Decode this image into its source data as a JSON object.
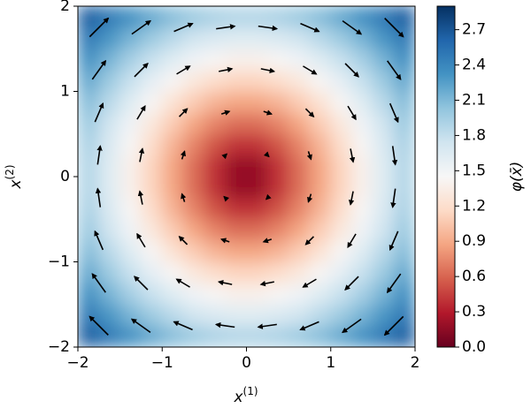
{
  "chart_data": {
    "type": "contour-quiver",
    "xlabel": {
      "base": "x",
      "sup": "(1)"
    },
    "ylabel": {
      "base": "x",
      "sup": "(2)"
    },
    "colorbar_label": "φ(x̄)",
    "xlim": [
      -2,
      2
    ],
    "ylim": [
      -2,
      2
    ],
    "zlim": [
      0,
      2.9
    ],
    "xticks": [
      {
        "value": -2,
        "label": "−2"
      },
      {
        "value": -1,
        "label": "−1"
      },
      0,
      1,
      2
    ],
    "yticks": [
      {
        "value": -2,
        "label": "−2"
      },
      {
        "value": -1,
        "label": "−1"
      },
      0,
      1,
      2
    ],
    "cticks": [
      {
        "value": 0,
        "label": "0.0"
      },
      {
        "value": 0.3,
        "label": "0.3"
      },
      {
        "value": 0.6,
        "label": "0.6"
      },
      {
        "value": 0.9,
        "label": "0.9"
      },
      {
        "value": 1.2,
        "label": "1.2"
      },
      {
        "value": 1.5,
        "label": "1.5"
      },
      {
        "value": 1.8,
        "label": "1.8"
      },
      {
        "value": 2.1,
        "label": "2.1"
      },
      {
        "value": 2.4,
        "label": "2.4"
      },
      {
        "value": 2.7,
        "label": "2.7"
      }
    ],
    "colormap": [
      "#67001f",
      "#b2182b",
      "#d6604d",
      "#f4a582",
      "#fddbc7",
      "#f7f7f7",
      "#d1e5f0",
      "#92c5de",
      "#4393c3",
      "#2166ac",
      "#053061"
    ],
    "arrow_color": "#000000",
    "x": [
      -1.875,
      -1.625,
      -1.375,
      -1.125,
      -0.875,
      -0.625,
      -0.375,
      -0.125,
      0.125,
      0.375,
      0.625,
      0.875,
      1.125,
      1.375,
      1.625,
      1.875
    ],
    "y": [
      -1.875,
      -1.625,
      -1.375,
      -1.125,
      -0.875,
      -0.625,
      -0.375,
      -0.125,
      0.125,
      0.375,
      0.625,
      0.875,
      1.125,
      1.375,
      1.625,
      1.875
    ],
    "z": [
      [
        2.65,
        2.48,
        2.33,
        2.19,
        2.07,
        1.98,
        1.91,
        1.88,
        1.88,
        1.91,
        1.98,
        2.07,
        2.19,
        2.33,
        2.48,
        2.65
      ],
      [
        2.48,
        2.3,
        2.13,
        1.98,
        1.85,
        1.74,
        1.67,
        1.63,
        1.63,
        1.67,
        1.74,
        1.85,
        1.98,
        2.13,
        2.3,
        2.48
      ],
      [
        2.33,
        2.13,
        1.94,
        1.78,
        1.63,
        1.51,
        1.43,
        1.38,
        1.38,
        1.43,
        1.51,
        1.63,
        1.78,
        1.94,
        2.13,
        2.33
      ],
      [
        2.19,
        1.98,
        1.78,
        1.59,
        1.43,
        1.29,
        1.19,
        1.13,
        1.13,
        1.19,
        1.29,
        1.43,
        1.59,
        1.78,
        1.98,
        2.19
      ],
      [
        2.07,
        1.85,
        1.63,
        1.43,
        1.24,
        1.08,
        0.95,
        0.88,
        0.88,
        0.95,
        1.08,
        1.24,
        1.43,
        1.63,
        1.85,
        2.07
      ],
      [
        1.98,
        1.74,
        1.51,
        1.29,
        1.08,
        0.88,
        0.73,
        0.64,
        0.64,
        0.73,
        0.88,
        1.08,
        1.29,
        1.51,
        1.74,
        1.98
      ],
      [
        1.91,
        1.67,
        1.43,
        1.19,
        0.95,
        0.73,
        0.53,
        0.4,
        0.4,
        0.53,
        0.73,
        0.95,
        1.19,
        1.43,
        1.67,
        1.91
      ],
      [
        1.88,
        1.63,
        1.38,
        1.13,
        0.88,
        0.64,
        0.4,
        0.18,
        0.18,
        0.4,
        0.64,
        0.88,
        1.13,
        1.38,
        1.63,
        1.88
      ],
      [
        1.88,
        1.63,
        1.38,
        1.13,
        0.88,
        0.64,
        0.4,
        0.18,
        0.18,
        0.4,
        0.64,
        0.88,
        1.13,
        1.38,
        1.63,
        1.88
      ],
      [
        1.91,
        1.67,
        1.43,
        1.19,
        0.95,
        0.73,
        0.53,
        0.4,
        0.4,
        0.53,
        0.73,
        0.95,
        1.19,
        1.43,
        1.67,
        1.91
      ],
      [
        1.98,
        1.74,
        1.51,
        1.29,
        1.08,
        0.88,
        0.73,
        0.64,
        0.64,
        0.73,
        0.88,
        1.08,
        1.29,
        1.51,
        1.74,
        1.98
      ],
      [
        2.07,
        1.85,
        1.63,
        1.43,
        1.24,
        1.08,
        0.95,
        0.88,
        0.88,
        0.95,
        1.08,
        1.24,
        1.43,
        1.63,
        1.85,
        2.07
      ],
      [
        2.19,
        1.98,
        1.78,
        1.59,
        1.43,
        1.29,
        1.19,
        1.13,
        1.13,
        1.19,
        1.29,
        1.43,
        1.59,
        1.78,
        1.98,
        2.19
      ],
      [
        2.33,
        2.13,
        1.94,
        1.78,
        1.63,
        1.51,
        1.43,
        1.38,
        1.38,
        1.43,
        1.51,
        1.63,
        1.78,
        1.94,
        2.13,
        2.33
      ],
      [
        2.48,
        2.3,
        2.13,
        1.98,
        1.85,
        1.74,
        1.67,
        1.63,
        1.63,
        1.67,
        1.74,
        1.85,
        1.98,
        2.13,
        2.3,
        2.48
      ],
      [
        2.65,
        2.48,
        2.33,
        2.19,
        2.07,
        1.98,
        1.91,
        1.88,
        1.88,
        1.91,
        1.98,
        2.07,
        2.19,
        2.33,
        2.48,
        2.65
      ]
    ],
    "quiver": {
      "x": [
        -1.75,
        -1.25,
        -0.75,
        -0.25,
        0.25,
        0.75,
        1.25,
        1.75
      ],
      "y": [
        -1.75,
        -1.25,
        -0.75,
        -0.25,
        0.25,
        0.75,
        1.25,
        1.75
      ],
      "u": [
        [
          -1.75,
          -1.75,
          -1.75,
          -1.75,
          -1.75,
          -1.75,
          -1.75,
          -1.75
        ],
        [
          -1.25,
          -1.25,
          -1.25,
          -1.25,
          -1.25,
          -1.25,
          -1.25,
          -1.25
        ],
        [
          -0.75,
          -0.75,
          -0.75,
          -0.75,
          -0.75,
          -0.75,
          -0.75,
          -0.75
        ],
        [
          -0.25,
          -0.25,
          -0.25,
          -0.25,
          -0.25,
          -0.25,
          -0.25,
          -0.25
        ],
        [
          0.25,
          0.25,
          0.25,
          0.25,
          0.25,
          0.25,
          0.25,
          0.25
        ],
        [
          0.75,
          0.75,
          0.75,
          0.75,
          0.75,
          0.75,
          0.75,
          0.75
        ],
        [
          1.25,
          1.25,
          1.25,
          1.25,
          1.25,
          1.25,
          1.25,
          1.25
        ],
        [
          1.75,
          1.75,
          1.75,
          1.75,
          1.75,
          1.75,
          1.75,
          1.75
        ]
      ],
      "v": [
        [
          1.75,
          1.25,
          0.75,
          0.25,
          -0.25,
          -0.75,
          -1.25,
          -1.75
        ],
        [
          1.75,
          1.25,
          0.75,
          0.25,
          -0.25,
          -0.75,
          -1.25,
          -1.75
        ],
        [
          1.75,
          1.25,
          0.75,
          0.25,
          -0.25,
          -0.75,
          -1.25,
          -1.75
        ],
        [
          1.75,
          1.25,
          0.75,
          0.25,
          -0.25,
          -0.75,
          -1.25,
          -1.75
        ],
        [
          1.75,
          1.25,
          0.75,
          0.25,
          -0.25,
          -0.75,
          -1.25,
          -1.75
        ],
        [
          1.75,
          1.25,
          0.75,
          0.25,
          -0.25,
          -0.75,
          -1.25,
          -1.75
        ],
        [
          1.75,
          1.25,
          0.75,
          0.25,
          -0.25,
          -0.75,
          -1.25,
          -1.75
        ],
        [
          1.75,
          1.25,
          0.75,
          0.25,
          -0.25,
          -0.75,
          -1.25,
          -1.75
        ]
      ]
    }
  }
}
